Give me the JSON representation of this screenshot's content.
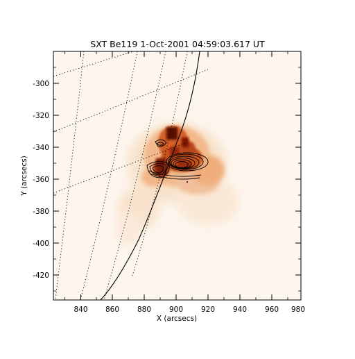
{
  "title": "SXT Be119  1-Oct-2001 04:59:03.617 UT",
  "xlabel": "X (arcsecs)",
  "ylabel": "Y (arcsecs)",
  "x_ticks": [
    "840",
    "860",
    "880",
    "900",
    "920",
    "940",
    "960",
    "980"
  ],
  "y_ticks": [
    "-300",
    "-320",
    "-340",
    "-360",
    "-380",
    "-400",
    "-420"
  ]
}
